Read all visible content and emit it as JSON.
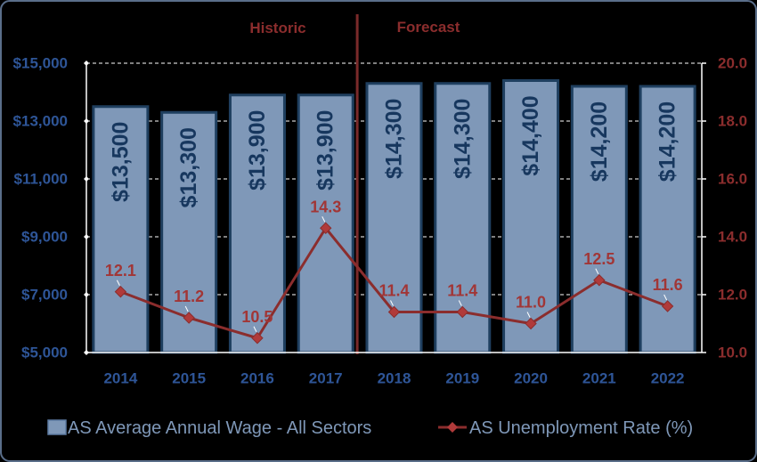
{
  "chart_data": {
    "type": "bar+line",
    "categories": [
      "2014",
      "2015",
      "2016",
      "2017",
      "2018",
      "2019",
      "2020",
      "2021",
      "2022"
    ],
    "series": [
      {
        "name": "AS Average Annual Wage - All Sectors",
        "type": "bar",
        "axis": "left",
        "values": [
          13500,
          13300,
          13900,
          13900,
          14300,
          14300,
          14400,
          14200,
          14200
        ],
        "labels": [
          "$13,500",
          "$13,300",
          "$13,900",
          "$13,900",
          "$14,300",
          "$14,300",
          "$14,400",
          "$14,200",
          "$14,200"
        ],
        "color": "#7f98b8"
      },
      {
        "name": "AS Unemployment Rate (%)",
        "type": "line",
        "axis": "right",
        "values": [
          12.1,
          11.2,
          10.5,
          14.3,
          11.4,
          11.4,
          11.0,
          12.5,
          11.6
        ],
        "labels": [
          "12.1",
          "11.2",
          "10.5",
          "14.3",
          "11.4",
          "11.4",
          "11.0",
          "12.5",
          "11.6"
        ],
        "color": "#8b2d2d"
      }
    ],
    "left_axis": {
      "min": 5000,
      "max": 15000,
      "ticks": [
        5000,
        7000,
        9000,
        11000,
        13000,
        15000
      ],
      "tick_labels": [
        "$5,000",
        "$7,000",
        "$9,000",
        "$11,000",
        "$13,000",
        "$15,000"
      ],
      "color": "#2e5597"
    },
    "right_axis": {
      "min": 10,
      "max": 20,
      "ticks": [
        10,
        12,
        14,
        16,
        18,
        20
      ],
      "tick_labels": [
        "10.0",
        "12.0",
        "14.0",
        "16.0",
        "18.0",
        "20.0"
      ],
      "color": "#8b2d2d"
    },
    "annotations": [
      {
        "text": "Historic",
        "color": "#8b2d2d"
      },
      {
        "text": "Forecast",
        "color": "#8b2d2d"
      }
    ],
    "divider_after_category": "2017",
    "grid": true,
    "legend_position": "bottom"
  }
}
